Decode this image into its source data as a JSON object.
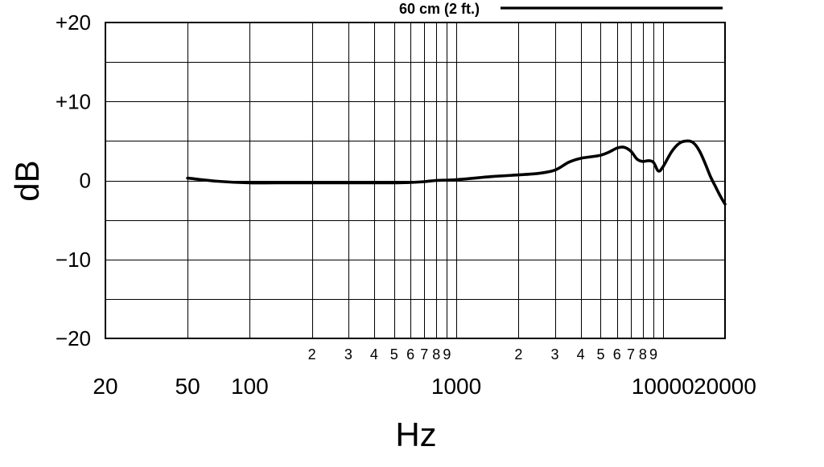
{
  "chart_data": {
    "type": "line",
    "xlabel": "Hz",
    "ylabel": "dB",
    "xscale": "log",
    "xlim": [
      20,
      20000
    ],
    "ylim": [
      -20,
      20
    ],
    "y_ticks": [
      {
        "value": 20,
        "label": "+20"
      },
      {
        "value": 10,
        "label": "+10"
      },
      {
        "value": 0,
        "label": "0"
      },
      {
        "value": -10,
        "label": "−10"
      },
      {
        "value": -20,
        "label": "−20"
      }
    ],
    "x_major_ticks": [
      {
        "value": 20,
        "label": "20"
      },
      {
        "value": 50,
        "label": "50"
      },
      {
        "value": 100,
        "label": "100"
      },
      {
        "value": 1000,
        "label": "1000"
      },
      {
        "value": 10000,
        "label": "10000"
      },
      {
        "value": 20000,
        "label": "20000"
      }
    ],
    "x_minor_ticks": [
      {
        "value": 200,
        "label": "2"
      },
      {
        "value": 300,
        "label": "3"
      },
      {
        "value": 400,
        "label": "4"
      },
      {
        "value": 500,
        "label": "5"
      },
      {
        "value": 600,
        "label": "6"
      },
      {
        "value": 700,
        "label": "7"
      },
      {
        "value": 800,
        "label": "8"
      },
      {
        "value": 900,
        "label": "9"
      },
      {
        "value": 2000,
        "label": "2"
      },
      {
        "value": 3000,
        "label": "3"
      },
      {
        "value": 4000,
        "label": "4"
      },
      {
        "value": 5000,
        "label": "5"
      },
      {
        "value": 6000,
        "label": "6"
      },
      {
        "value": 7000,
        "label": "7"
      },
      {
        "value": 8000,
        "label": "8"
      },
      {
        "value": 9000,
        "label": "9"
      }
    ],
    "y_gridlines": [
      -20,
      -15,
      -10,
      -5,
      0,
      5,
      10,
      15,
      20
    ],
    "x_gridlines": [
      50,
      100,
      200,
      300,
      400,
      500,
      600,
      700,
      800,
      900,
      1000,
      2000,
      3000,
      4000,
      5000,
      6000,
      7000,
      8000,
      9000,
      10000,
      20000
    ],
    "grid": true,
    "legend_position": "top-right",
    "series": [
      {
        "name": "60 cm (2 ft.)",
        "x": [
          50,
          70,
          100,
          150,
          200,
          300,
          400,
          500,
          600,
          700,
          800,
          1000,
          1500,
          2000,
          2500,
          3000,
          3500,
          4000,
          4500,
          5000,
          5500,
          6000,
          6500,
          7000,
          7500,
          8000,
          8500,
          9000,
          9500,
          10000,
          11000,
          12000,
          13000,
          14000,
          15000,
          16000,
          17000,
          18000,
          19000,
          20000
        ],
        "y": [
          0.3,
          -0.1,
          -0.3,
          -0.3,
          -0.3,
          -0.3,
          -0.3,
          -0.3,
          -0.25,
          -0.15,
          0,
          0.1,
          0.5,
          0.7,
          0.9,
          1.3,
          2.3,
          2.8,
          3.0,
          3.2,
          3.6,
          4.1,
          4.2,
          3.7,
          2.7,
          2.4,
          2.5,
          2.3,
          1.2,
          1.7,
          3.6,
          4.7,
          5.0,
          4.8,
          3.8,
          2.2,
          0.5,
          -0.8,
          -2.0,
          -3.0
        ]
      }
    ]
  }
}
